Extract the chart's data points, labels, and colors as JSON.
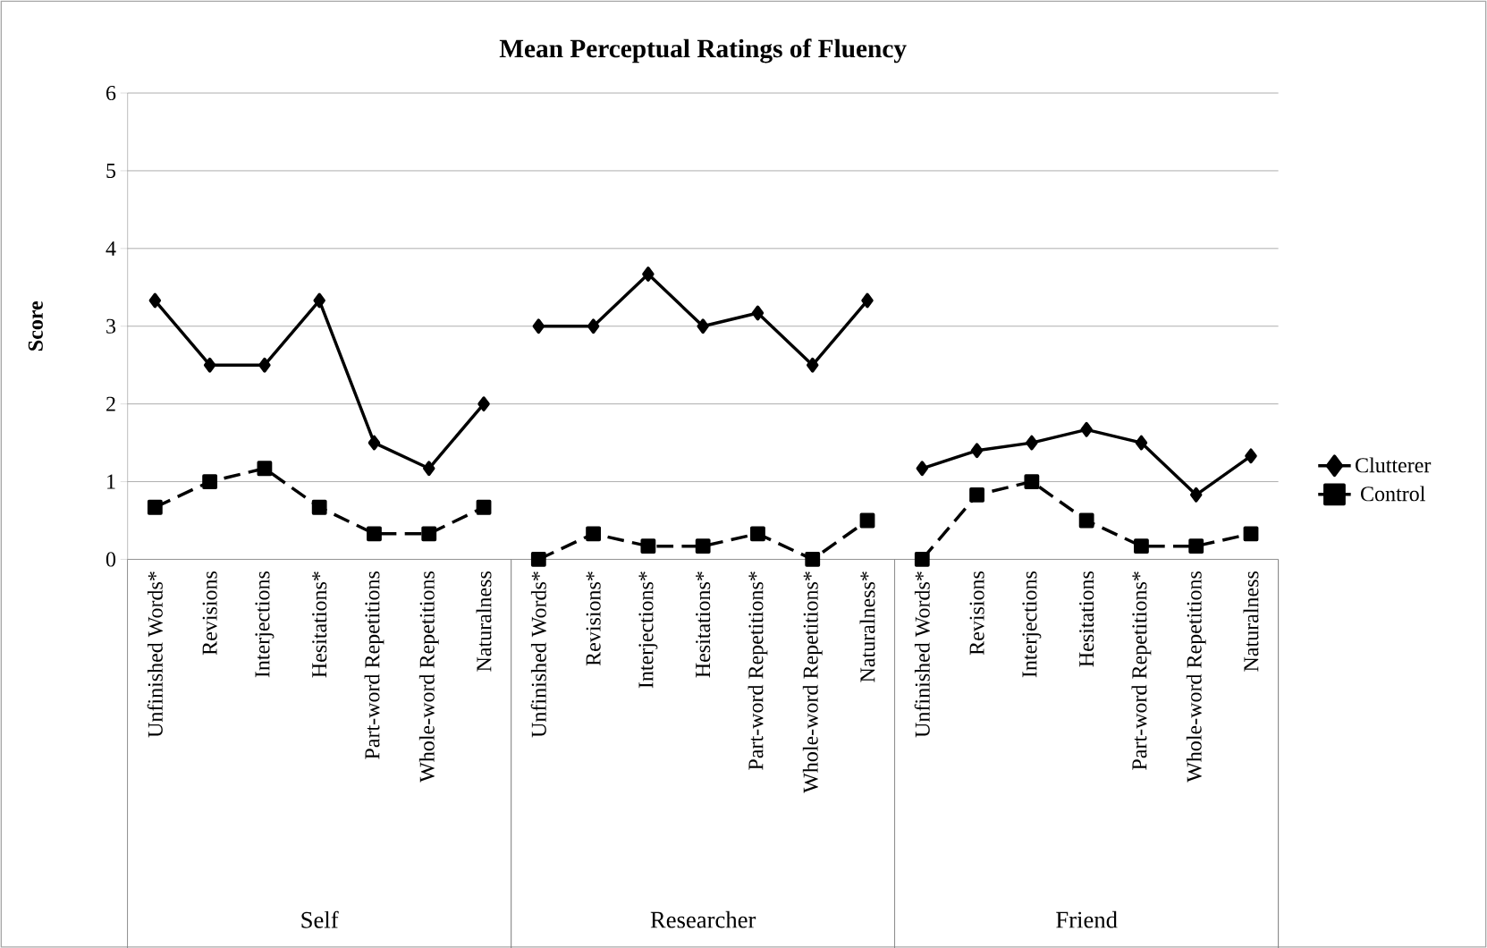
{
  "chart_data": {
    "type": "line",
    "title": "Mean Perceptual Ratings of Fluency",
    "ylabel": "Score",
    "categories": [
      "Unfinished Words*",
      "Revisions",
      "Interjections",
      "Hesitations*",
      "Part-word Repetitions",
      "Whole-word Repetitions",
      "Naturalness",
      "Unfinished Words*",
      "Revisions*",
      "Interjections*",
      "Hesitations*",
      "Part-word Repetitions*",
      "Whole-word Repetitions*",
      "Naturalness*",
      "Unfinished Words*",
      "Revisions",
      "Interjections",
      "Hesitations",
      "Part-word Repetitions*",
      "Whole-word Repetitions",
      "Naturalness"
    ],
    "ylim": [
      0,
      6
    ],
    "yticks": [
      0,
      1,
      2,
      3,
      4,
      5,
      6
    ],
    "grid": "y",
    "legend": "right",
    "annotations": [
      "Self",
      "Researcher",
      "Friend"
    ],
    "series": [
      {
        "name": "Clutterer",
        "color": "#000000",
        "marker": "diamond",
        "line_style": "solid",
        "values": [
          3.33,
          2.5,
          2.5,
          3.33,
          1.5,
          1.17,
          2.0,
          3.0,
          3.0,
          3.67,
          3.0,
          3.17,
          2.5,
          3.33,
          1.17,
          1.4,
          1.5,
          1.67,
          1.5,
          0.83,
          1.33
        ]
      },
      {
        "name": "Control",
        "color": "#000000",
        "marker": "square",
        "line_style": "dashed",
        "values": [
          0.67,
          1.0,
          1.17,
          0.67,
          0.33,
          0.33,
          0.67,
          0,
          0.33,
          0.17,
          0.17,
          0.33,
          0,
          0.5,
          0,
          0.83,
          1.0,
          0.5,
          0.17,
          0.17,
          0.33
        ]
      }
    ]
  }
}
